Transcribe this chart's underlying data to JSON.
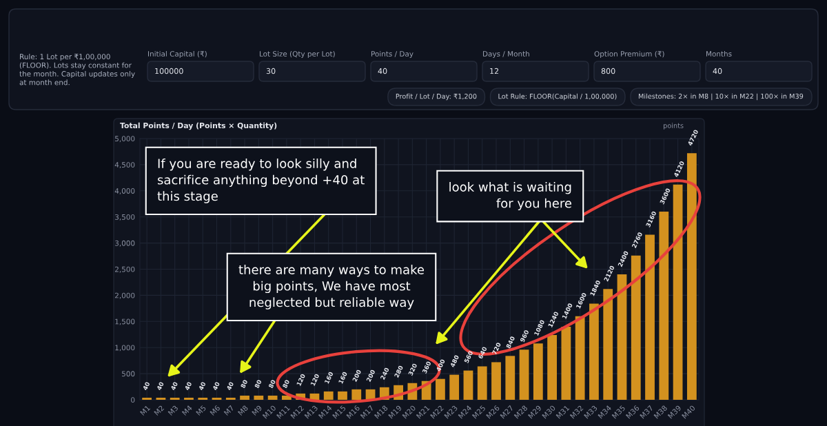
{
  "chart_data": [
    {
      "type": "other",
      "categories": [
        "Initial Capital (₹)",
        "Lot Size (Qty per Lot)",
        "Points / Day",
        "Days / Month",
        "Option Premium (₹)",
        "Months"
      ],
      "values": [
        100000,
        30,
        40,
        12,
        800,
        40
      ],
      "data_labels": true,
      "annotations": [
        "Rule: 1 Lot per ₹1,00,000 (FLOOR). Lots stay constant for the month. Capital updates only at month end.",
        "Profit / Lot / Day: ₹1,200",
        "Lot Rule: FLOOR(Capital / 1,00,000)",
        "Milestones: 2× in M8 | 10× in M22 | 100× in M39"
      ]
    },
    {
      "type": "bar",
      "title": "Total Points / Day (Points × Quantity)",
      "ylabel": "points",
      "categories": [
        "M1",
        "M2",
        "M3",
        "M4",
        "M5",
        "M6",
        "M7",
        "M8",
        "M9",
        "M10",
        "M11",
        "M12",
        "M13",
        "M14",
        "M15",
        "M16",
        "M17",
        "M18",
        "M19",
        "M20",
        "M21",
        "M22",
        "M23",
        "M24",
        "M25",
        "M26",
        "M27",
        "M28",
        "M29",
        "M30",
        "M31",
        "M32",
        "M33",
        "M34",
        "M35",
        "M36",
        "M37",
        "M38",
        "M39",
        "M40"
      ],
      "values": [
        40,
        40,
        40,
        40,
        40,
        40,
        40,
        80,
        80,
        80,
        80,
        120,
        120,
        160,
        160,
        200,
        200,
        240,
        280,
        320,
        360,
        400,
        480,
        560,
        640,
        720,
        840,
        960,
        1080,
        1240,
        1400,
        1600,
        1840,
        2120,
        2400,
        2760,
        3160,
        3600,
        4120,
        4720
      ],
      "color": "#d4921f",
      "ylim": [
        0,
        5000
      ],
      "yticks": [
        0,
        500,
        {
          "value": 1000,
          "label": "1,000"
        },
        {
          "value": 1500,
          "label": "1,500"
        },
        {
          "value": 2000,
          "label": "2,000"
        },
        {
          "value": 2500,
          "label": "2,500"
        },
        {
          "value": 3000,
          "label": "3,000"
        },
        {
          "value": 3500,
          "label": "3,500"
        },
        {
          "value": 4000,
          "label": "4,000"
        },
        {
          "value": 4500,
          "label": "4,500"
        },
        {
          "value": 5000,
          "label": "5,000"
        }
      ],
      "grid": true,
      "data_labels": true,
      "annotations": [
        "If you are ready to look silly and sacrifice anything beyond +40 at this stage",
        "there are many ways to make big points, We have most neglected but reliable way",
        "look what is waiting for you here"
      ]
    }
  ]
}
